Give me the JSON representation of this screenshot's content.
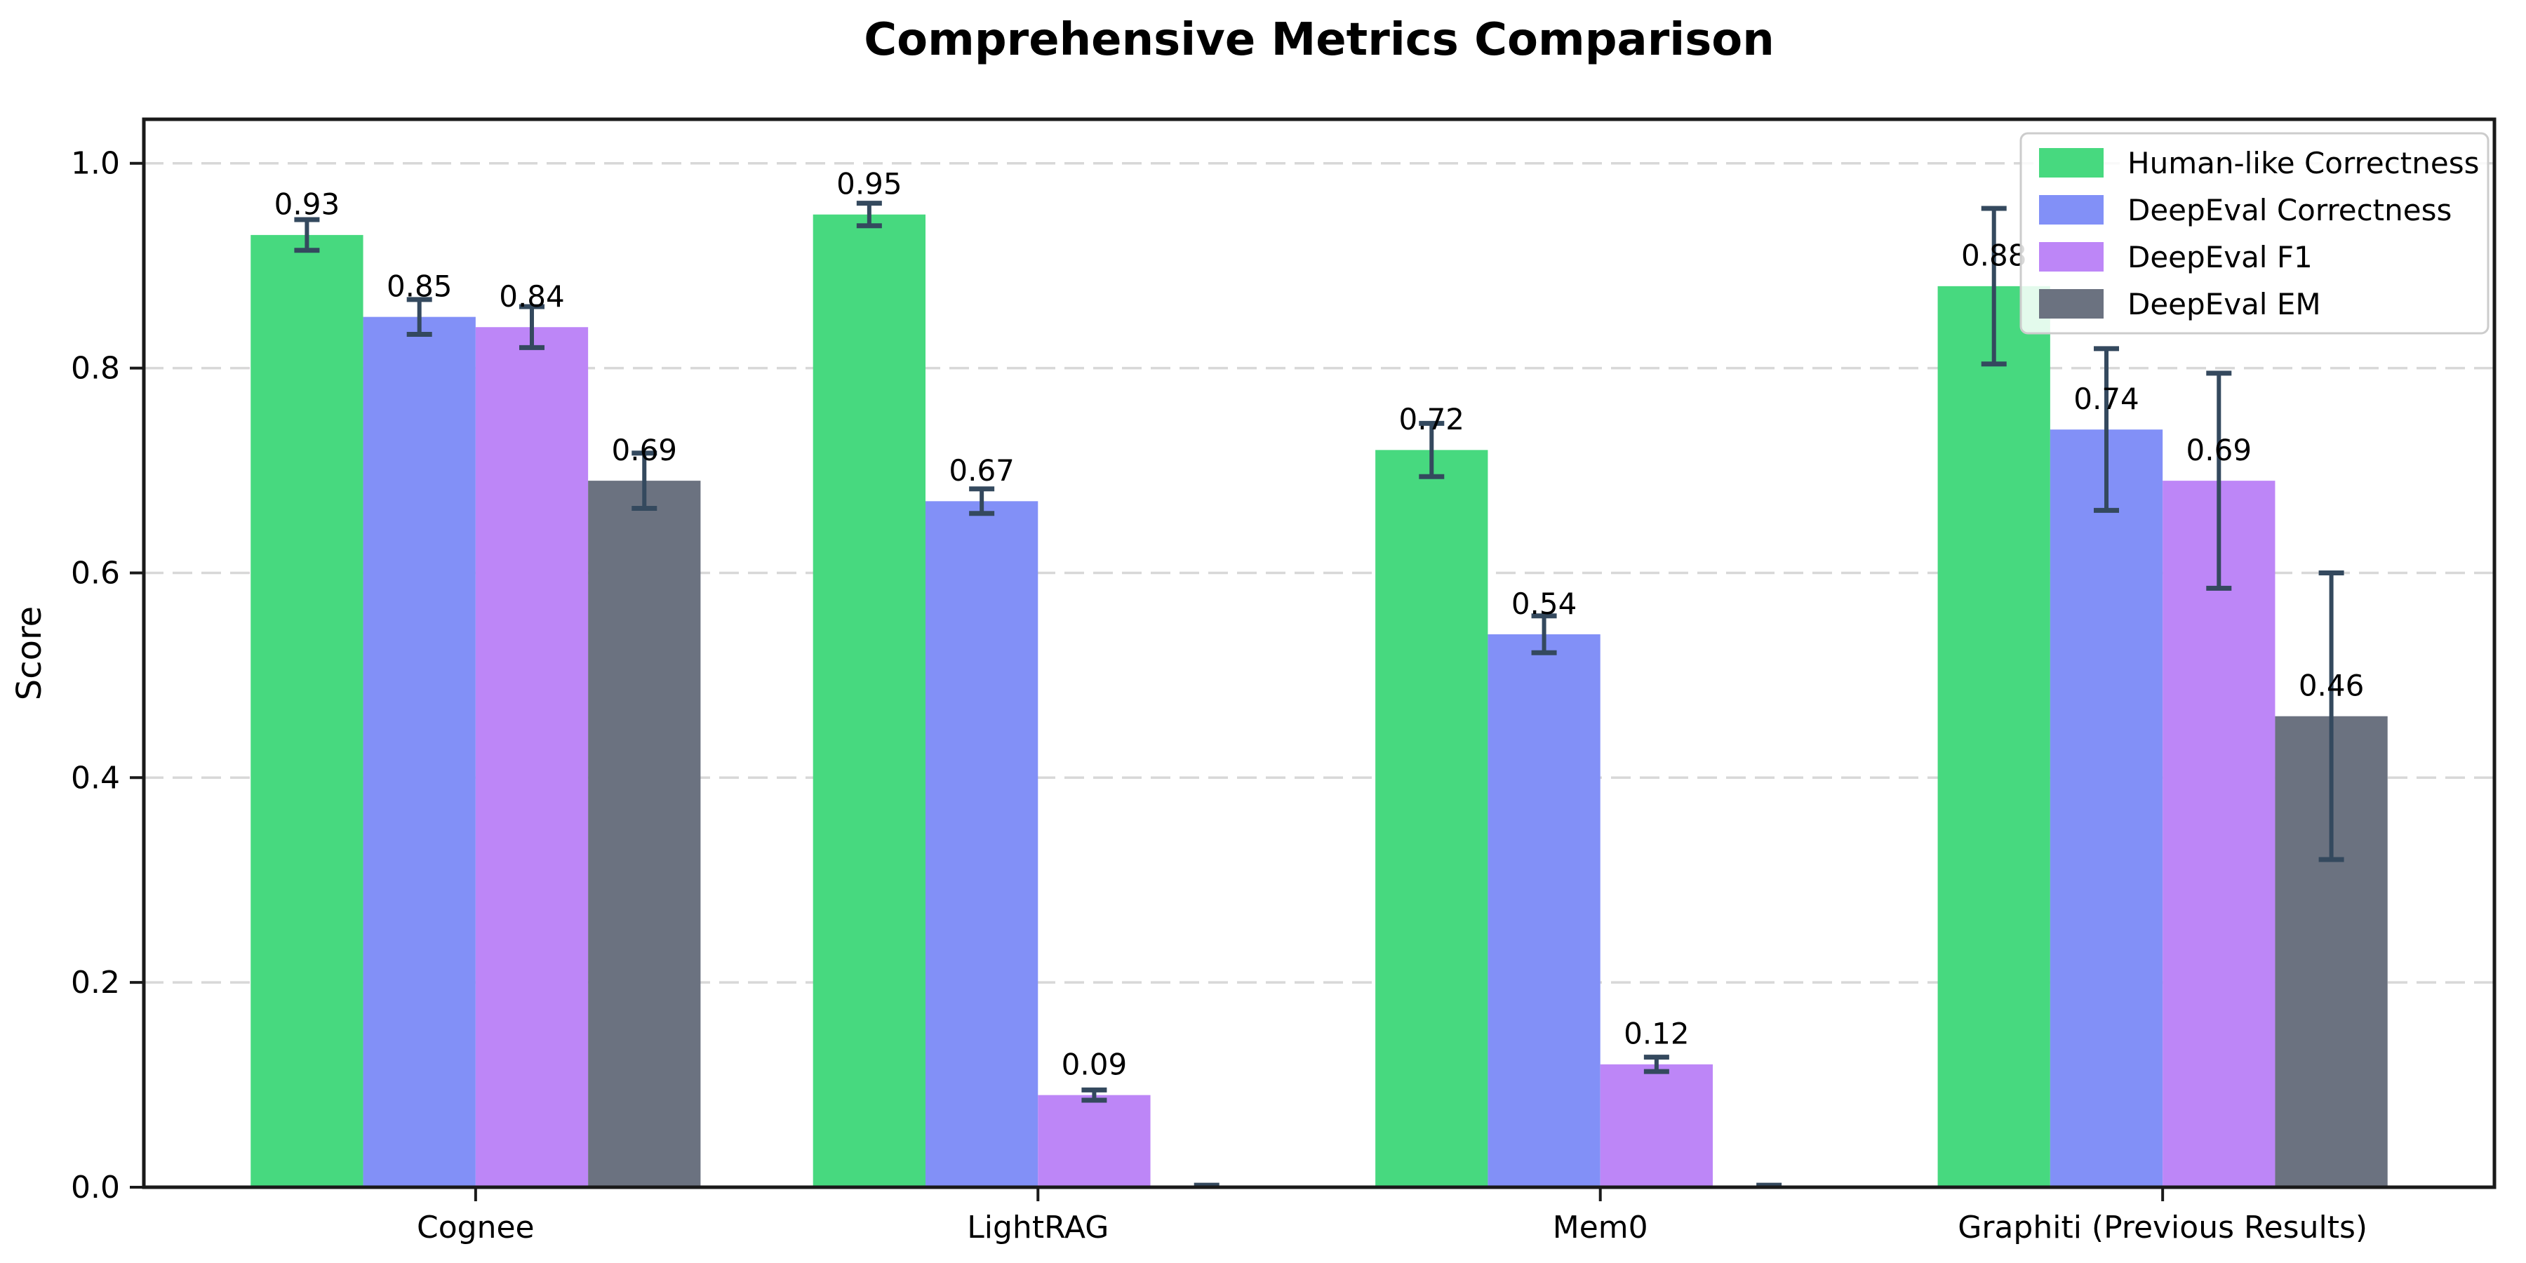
{
  "chart_data": {
    "type": "bar",
    "title": "Comprehensive Metrics Comparison",
    "xlabel": "",
    "ylabel": "Score",
    "categories": [
      "Cognee",
      "LightRAG",
      "Mem0",
      "Graphiti (Previous Results)"
    ],
    "series": [
      {
        "name": "Human-like Correctness",
        "color": "#47d97f",
        "values": [
          0.93,
          0.95,
          0.72,
          0.88
        ],
        "errors": [
          0.015,
          0.011,
          0.026,
          0.076
        ],
        "labels": [
          "0.93",
          "0.95",
          "0.72",
          "0.88"
        ]
      },
      {
        "name": "DeepEval Correctness",
        "color": "#8290f7",
        "values": [
          0.85,
          0.67,
          0.54,
          0.74
        ],
        "errors": [
          0.017,
          0.012,
          0.018,
          0.079
        ],
        "labels": [
          "0.85",
          "0.67",
          "0.54",
          "0.74"
        ]
      },
      {
        "name": "DeepEval F1",
        "color": "#bd86f7",
        "values": [
          0.84,
          0.09,
          0.12,
          0.69
        ],
        "errors": [
          0.02,
          0.005,
          0.007,
          0.105
        ],
        "labels": [
          "0.84",
          "0.09",
          "0.12",
          "0.69"
        ]
      },
      {
        "name": "DeepEval EM",
        "color": "#6b7280",
        "values": [
          0.69,
          0.0,
          0.0,
          0.46
        ],
        "errors": [
          0.027,
          0.002,
          0.002,
          0.14
        ],
        "labels": [
          "0.69",
          "",
          "",
          "0.46"
        ]
      }
    ],
    "ylim": [
      0,
      1.043
    ],
    "yticks": [
      0.0,
      0.2,
      0.4,
      0.6,
      0.8,
      1.0
    ],
    "ytick_labels": [
      "0.0",
      "0.2",
      "0.4",
      "0.6",
      "0.8",
      "1.0"
    ],
    "grid": "dashed horizontal",
    "legend_position": "upper right",
    "colors": {
      "background": "#ffffff",
      "error": "#34495e",
      "grid": "#d8d8d8",
      "axis": "#1a1a1a",
      "legend_border": "#cccccc",
      "label_text": "#000000"
    }
  }
}
